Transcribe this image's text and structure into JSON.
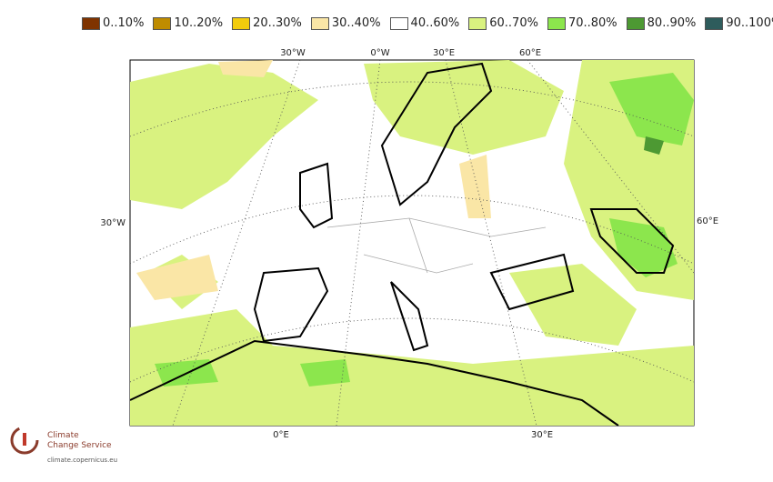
{
  "legend": {
    "items": [
      {
        "label": "0..10%",
        "color": "#7f3300"
      },
      {
        "label": "10..20%",
        "color": "#bf8c00"
      },
      {
        "label": "20..30%",
        "color": "#f2cc0d"
      },
      {
        "label": "30..40%",
        "color": "#fae6a6"
      },
      {
        "label": "40..60%",
        "color": "#ffffff"
      },
      {
        "label": "60..70%",
        "color": "#d9f280"
      },
      {
        "label": "70..80%",
        "color": "#8ce64d"
      },
      {
        "label": "80..90%",
        "color": "#4d9933"
      },
      {
        "label": "90..100%",
        "color": "#2e5c5c"
      }
    ]
  },
  "map": {
    "graticule_labels": {
      "top": [
        "30°W",
        "0°W",
        "30°E",
        "60°E"
      ],
      "left": "30°W",
      "right": "60°E",
      "bottom": [
        "0°E",
        "30°E"
      ]
    }
  },
  "logo": {
    "line1": "Climate",
    "line2": "Change Service",
    "url": "climate.copernicus.eu"
  }
}
